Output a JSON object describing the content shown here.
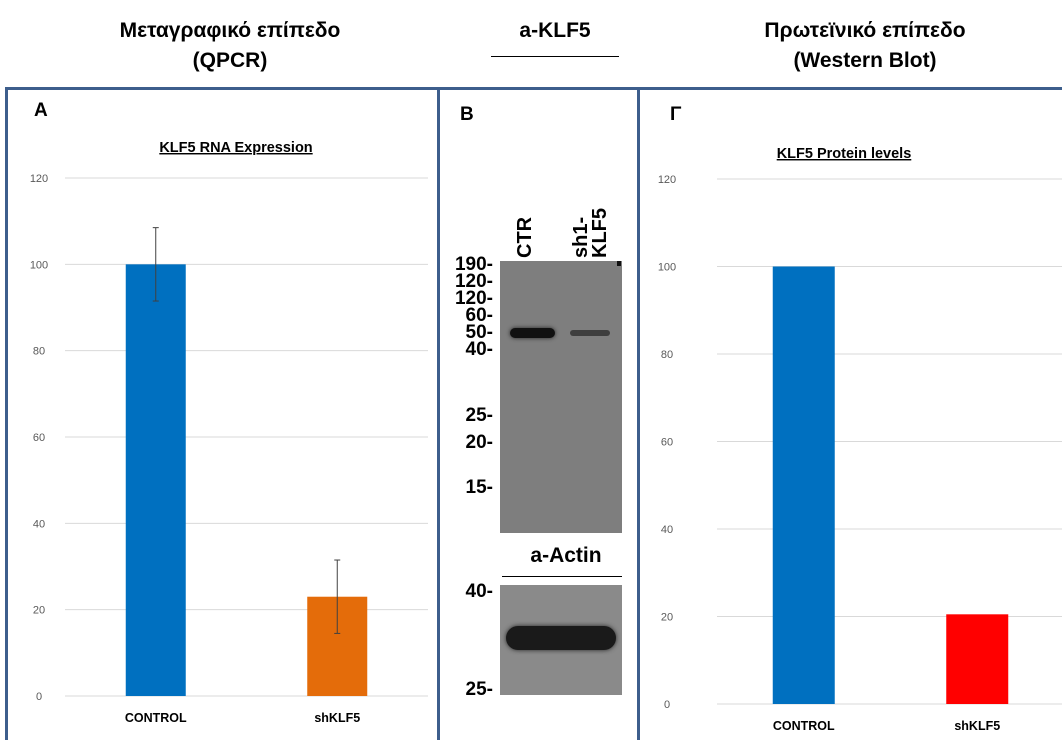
{
  "header": {
    "left_line1": "Μεταγραφικό επίπεδο",
    "left_line2": "(QPCR)",
    "middle": "a-KLF5",
    "right_line1": "Πρωτεϊνικό επίπεδο",
    "right_line2": "(Western Blot)"
  },
  "panelA": {
    "label": "A"
  },
  "panelB": {
    "label": "B",
    "lanes": [
      "CTR",
      "sh1-KLF5"
    ],
    "markers_top": [
      "190-",
      "120-",
      "120-",
      "60-",
      "50-",
      "40-",
      "25-",
      "20-",
      "15-"
    ],
    "actin_label": "a-Actin",
    "markers_actin": [
      "40-",
      "25-"
    ],
    "band_intensity_klf5": [
      1.0,
      0.35
    ]
  },
  "panelC": {
    "label": "Γ"
  },
  "chart_data": [
    {
      "type": "bar",
      "title": "KLF5 RNA Expression",
      "categories": [
        "CONTROL",
        "shKLF5"
      ],
      "values": [
        100,
        23
      ],
      "error": [
        8.5,
        8.5
      ],
      "ylim": [
        0,
        120
      ],
      "yticks": [
        0,
        20,
        40,
        60,
        80,
        100,
        120
      ],
      "colors": [
        "#0070C0",
        "#E46C0A"
      ],
      "grid": true
    },
    {
      "type": "bar",
      "title": "KLF5 Protein levels",
      "categories": [
        "CONTROL",
        "shKLF5"
      ],
      "values": [
        100,
        20.5
      ],
      "ylim": [
        0,
        120
      ],
      "yticks": [
        0,
        20,
        40,
        60,
        80,
        100,
        120
      ],
      "colors": [
        "#0070C0",
        "#FF0000"
      ],
      "grid": true
    }
  ]
}
